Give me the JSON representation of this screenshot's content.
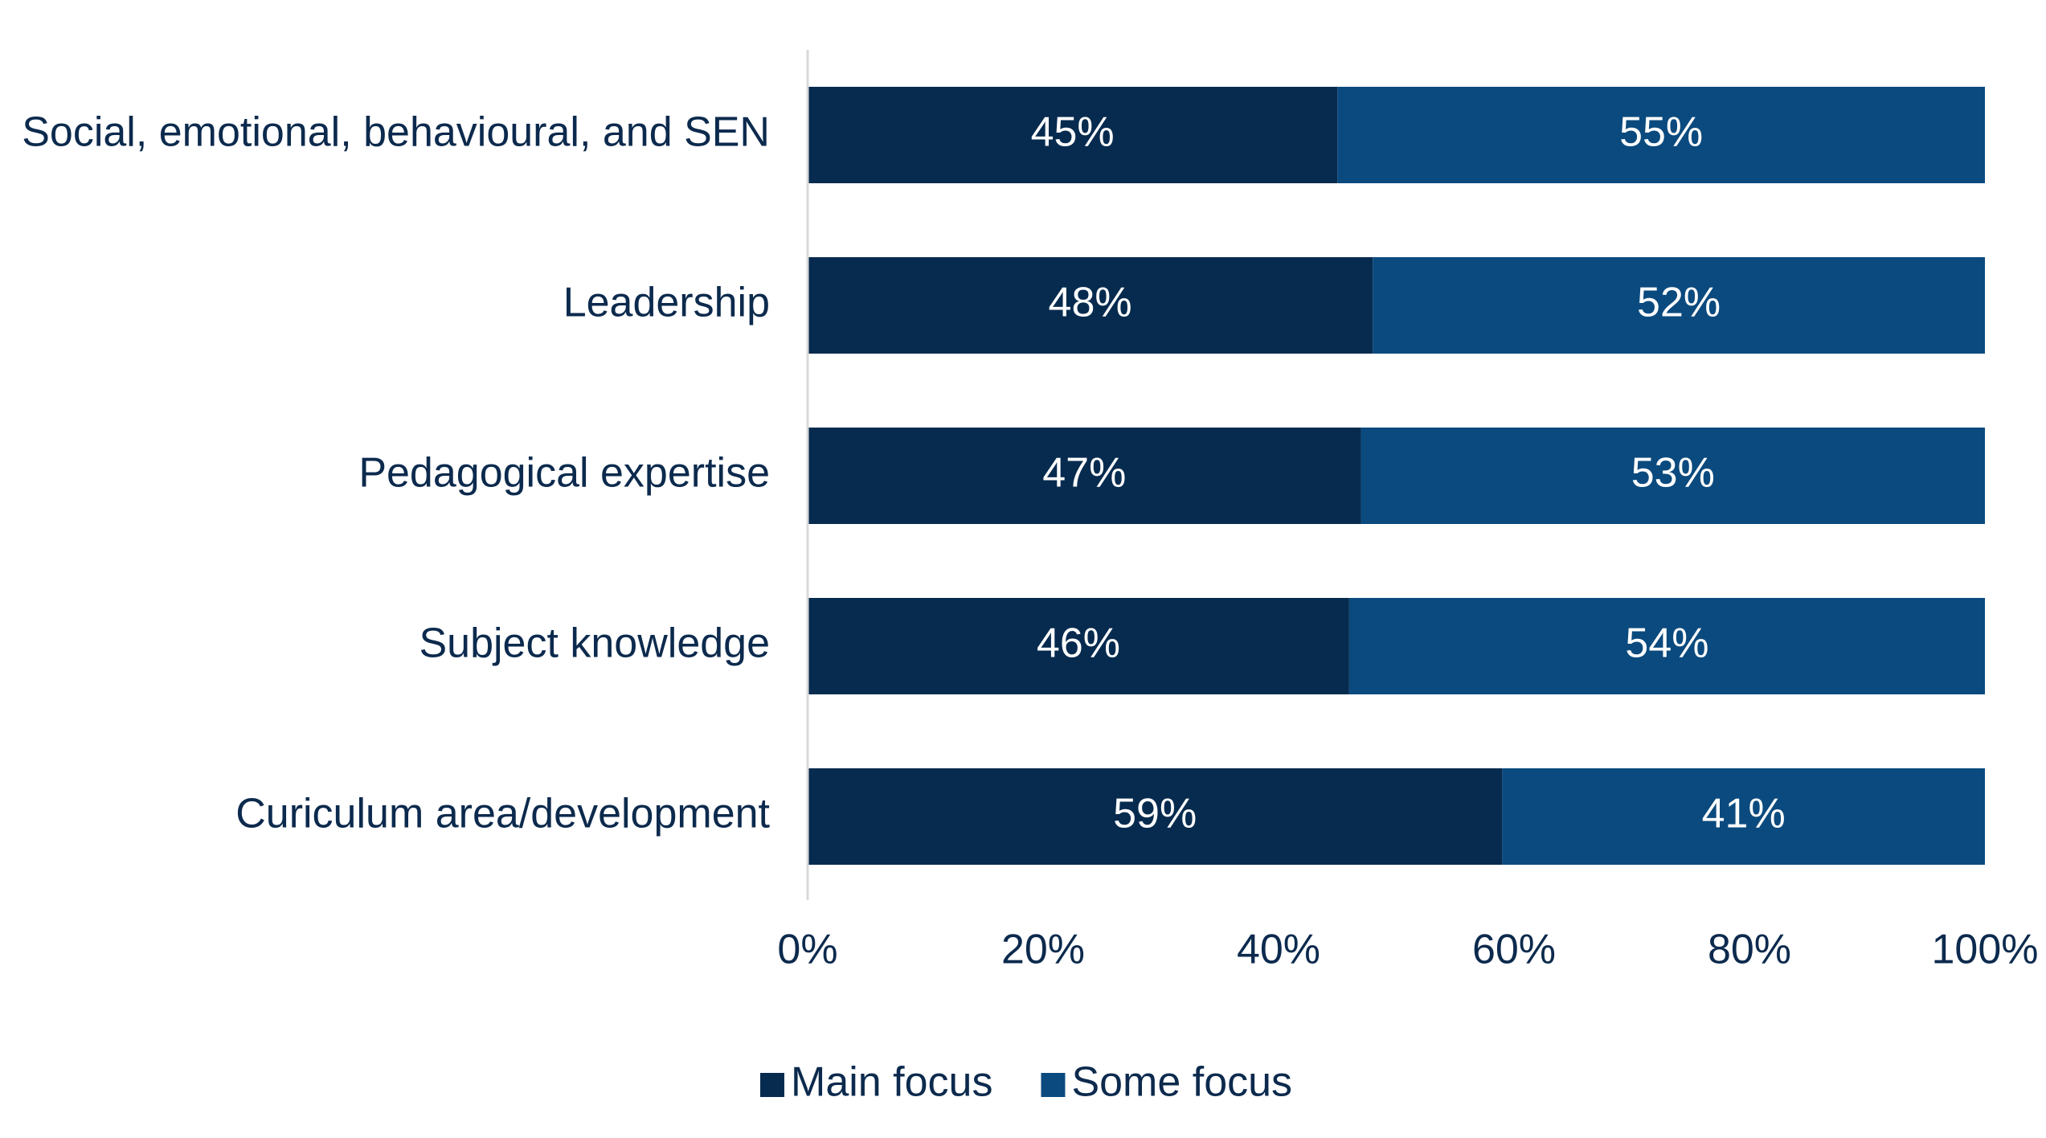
{
  "chart_data": {
    "type": "bar",
    "orientation": "horizontal",
    "stacked": true,
    "categories": [
      "Social, emotional, behavioural, and SEN",
      "Leadership",
      "Pedagogical expertise",
      "Subject knowledge",
      "Curiculum area/development"
    ],
    "series": [
      {
        "name": "Main focus",
        "color": "#072b4f",
        "values": [
          45,
          48,
          47,
          46,
          59
        ],
        "labels": [
          "45%",
          "48%",
          "47%",
          "46%",
          "59%"
        ]
      },
      {
        "name": "Some focus",
        "color": "#0b4a7e",
        "values": [
          55,
          52,
          53,
          54,
          41
        ],
        "labels": [
          "55%",
          "52%",
          "53%",
          "54%",
          "41%"
        ]
      }
    ],
    "x_ticks": [
      "0%",
      "20%",
      "40%",
      "60%",
      "80%",
      "100%"
    ],
    "xlim": [
      0,
      100
    ],
    "unit": "%",
    "grid": false,
    "legend": {
      "position": "bottom",
      "items": [
        "Main focus",
        "Some focus"
      ]
    },
    "colors": {
      "main_focus": "#072b4f",
      "some_focus": "#0b4a7e",
      "axis": "#d9d9d9",
      "text": "#0c2a4d"
    }
  }
}
